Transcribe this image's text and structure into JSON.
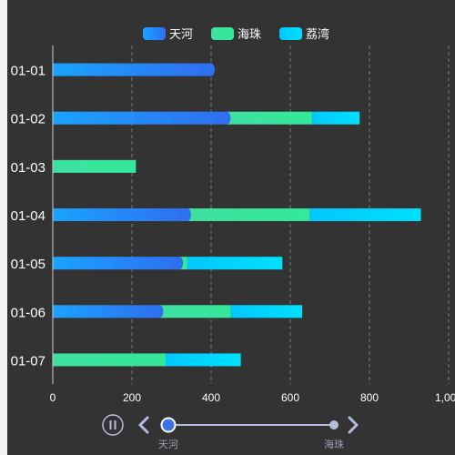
{
  "chart_data": {
    "type": "bar",
    "orientation": "horizontal",
    "stacked": true,
    "title": "",
    "xlabel": "",
    "ylabel": "",
    "categories": [
      "01-01",
      "01-02",
      "01-03",
      "01-04",
      "01-05",
      "01-06",
      "01-07"
    ],
    "series": [
      {
        "name": "天河",
        "values": [
          400,
          440,
          0,
          340,
          320,
          270,
          0
        ],
        "color": "#1e90ff"
      },
      {
        "name": "海珠",
        "values": [
          0,
          215,
          210,
          310,
          20,
          180,
          285
        ],
        "color": "#3be8a0"
      },
      {
        "name": "荔湾",
        "values": [
          0,
          120,
          0,
          280,
          240,
          180,
          190
        ],
        "color": "#00d4ff"
      }
    ],
    "xlim": [
      0,
      1000
    ],
    "xticks": [
      0,
      200,
      400,
      600,
      800,
      1000
    ],
    "xtick_labels": [
      "0",
      "200",
      "400",
      "600",
      "800",
      "1,000"
    ],
    "grid": "vertical dashed",
    "legend_position": "top-center",
    "background": "#333333"
  },
  "timeline": {
    "labels": [
      "天河",
      "海珠"
    ],
    "current_index": 0,
    "play_icon": "pause-icon",
    "prev_icon": "chevron-left-icon",
    "next_icon": "chevron-right-icon",
    "accent_color": "#3b73e6",
    "track_color": "#b8bde0"
  }
}
